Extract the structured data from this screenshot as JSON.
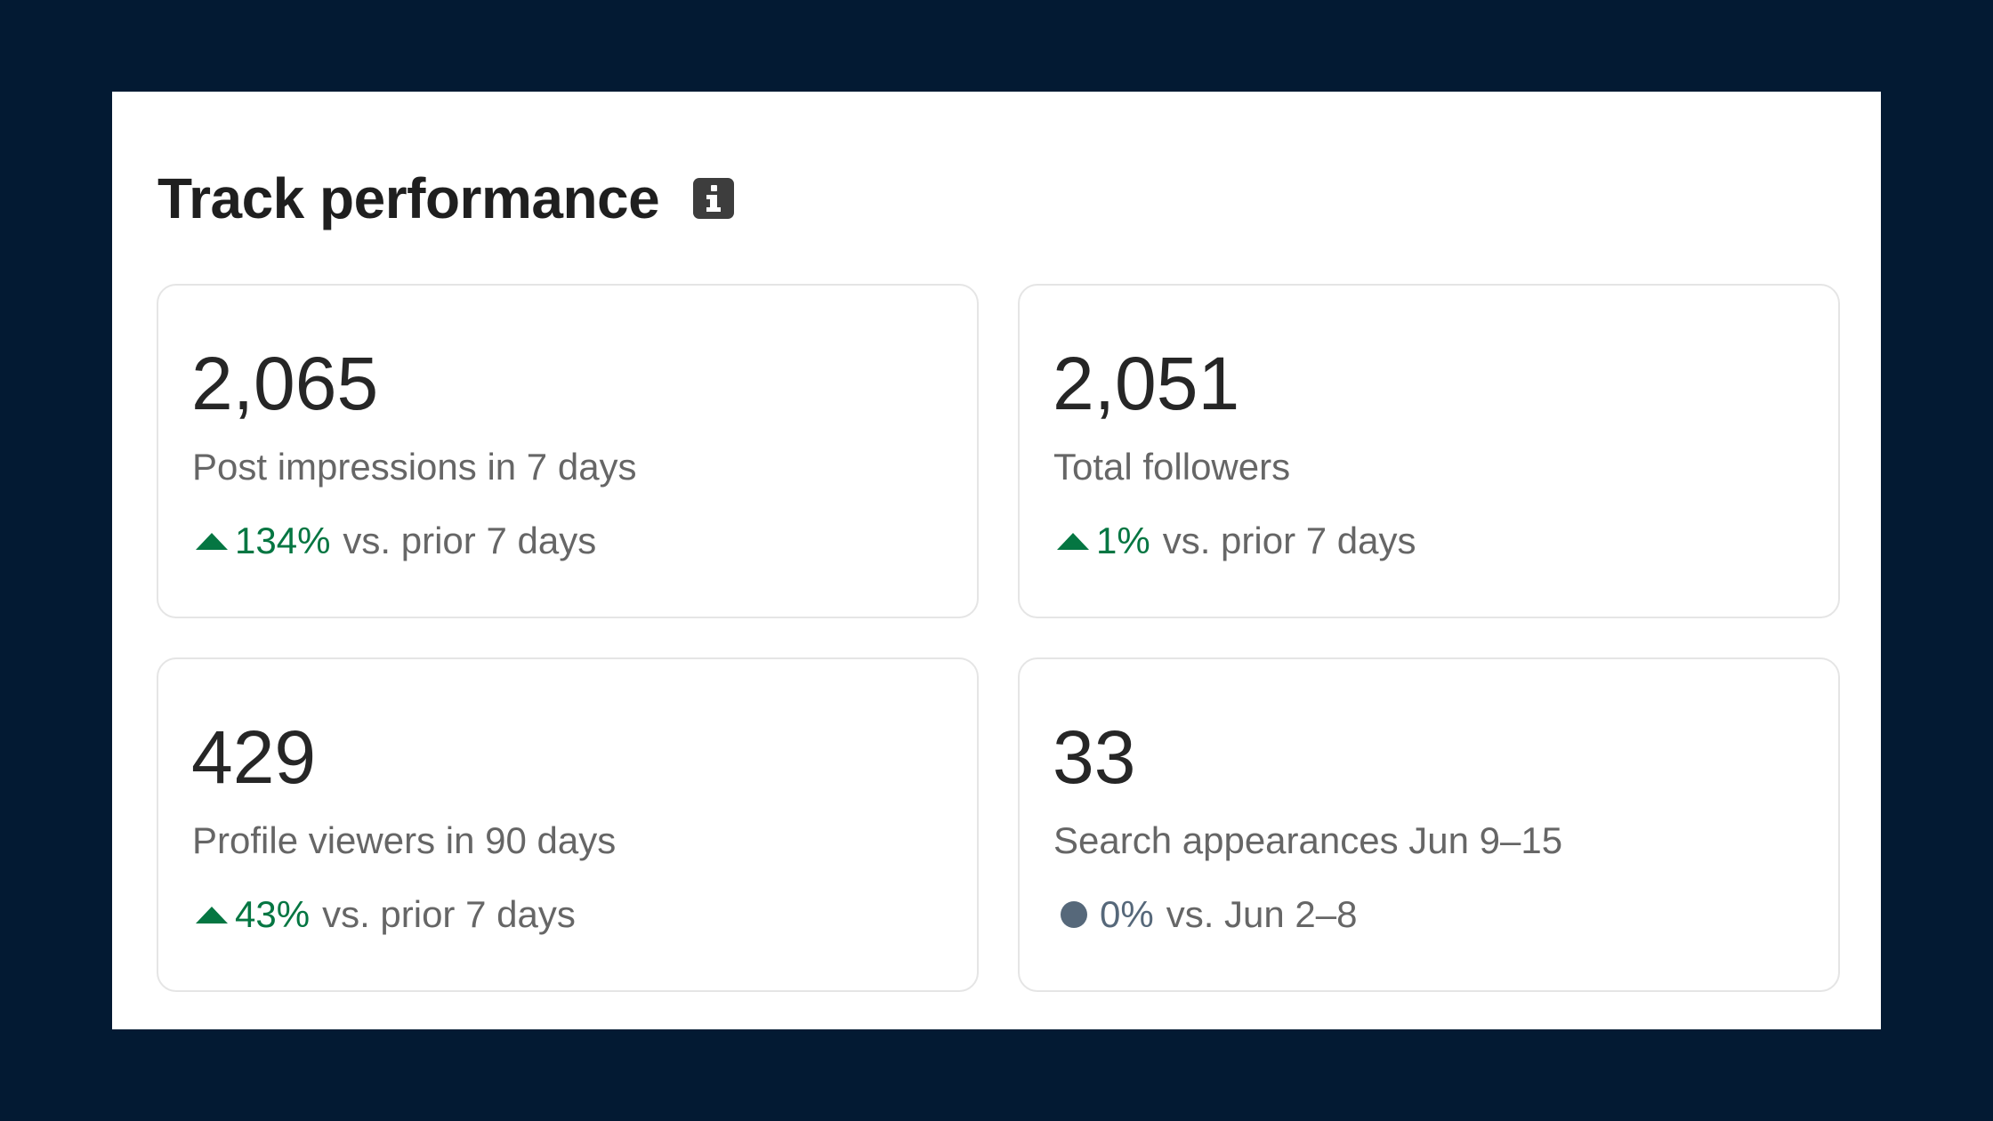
{
  "header": {
    "title": "Track performance",
    "info_icon": "info-icon"
  },
  "colors": {
    "background": "#031a33",
    "positive": "#057642",
    "neutral": "#56687a"
  },
  "metrics": [
    {
      "value": "2,065",
      "label": "Post impressions in 7 days",
      "trend": "up",
      "change": "134%",
      "comparison": "vs. prior 7 days"
    },
    {
      "value": "2,051",
      "label": "Total followers",
      "trend": "up",
      "change": "1%",
      "comparison": "vs. prior 7 days"
    },
    {
      "value": "429",
      "label": "Profile viewers in 90 days",
      "trend": "up",
      "change": "43%",
      "comparison": "vs. prior 7 days"
    },
    {
      "value": "33",
      "label": "Search appearances Jun 9–15",
      "trend": "neutral",
      "change": "0%",
      "comparison": "vs. Jun 2–8"
    }
  ]
}
